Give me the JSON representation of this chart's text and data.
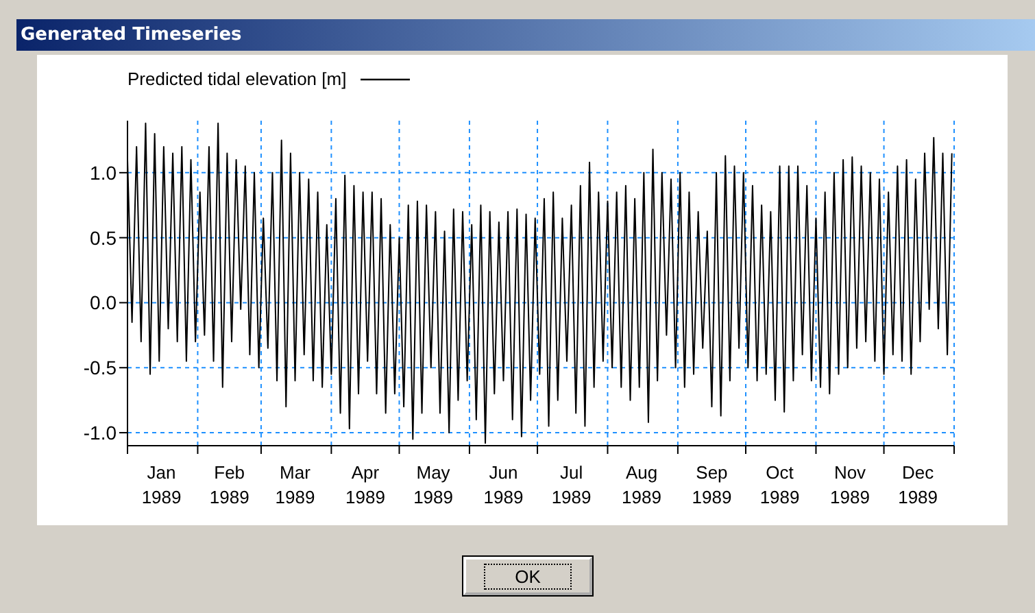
{
  "chart_data": {
    "type": "line",
    "title": "Generated Timeseries",
    "x": [
      "1989-01-01",
      "1989-01-03",
      "1989-01-05",
      "1989-01-07",
      "1989-01-09",
      "1989-01-11",
      "1989-01-13",
      "1989-01-15",
      "1989-01-17",
      "1989-01-19",
      "1989-01-21",
      "1989-01-23",
      "1989-01-25",
      "1989-01-27",
      "1989-01-29",
      "1989-01-31",
      "1989-02-02",
      "1989-02-04",
      "1989-02-06",
      "1989-02-08",
      "1989-02-10",
      "1989-02-12",
      "1989-02-14",
      "1989-02-16",
      "1989-02-18",
      "1989-02-20",
      "1989-02-22",
      "1989-02-24",
      "1989-02-26",
      "1989-02-28",
      "1989-03-02",
      "1989-03-04",
      "1989-03-06",
      "1989-03-08",
      "1989-03-10",
      "1989-03-12",
      "1989-03-14",
      "1989-03-16",
      "1989-03-18",
      "1989-03-20",
      "1989-03-22",
      "1989-03-24",
      "1989-03-26",
      "1989-03-28",
      "1989-03-30",
      "1989-04-01",
      "1989-04-03",
      "1989-04-05",
      "1989-04-07",
      "1989-04-09",
      "1989-04-11",
      "1989-04-13",
      "1989-04-15",
      "1989-04-17",
      "1989-04-19",
      "1989-04-21",
      "1989-04-23",
      "1989-04-25",
      "1989-04-27",
      "1989-04-29",
      "1989-05-01",
      "1989-05-03",
      "1989-05-05",
      "1989-05-07",
      "1989-05-09",
      "1989-05-11",
      "1989-05-13",
      "1989-05-15",
      "1989-05-17",
      "1989-05-19",
      "1989-05-21",
      "1989-05-23",
      "1989-05-25",
      "1989-05-27",
      "1989-05-29",
      "1989-05-31",
      "1989-06-02",
      "1989-06-04",
      "1989-06-06",
      "1989-06-08",
      "1989-06-10",
      "1989-06-12",
      "1989-06-14",
      "1989-06-16",
      "1989-06-18",
      "1989-06-20",
      "1989-06-22",
      "1989-06-24",
      "1989-06-26",
      "1989-06-28",
      "1989-06-30",
      "1989-07-02",
      "1989-07-04",
      "1989-07-06",
      "1989-07-08",
      "1989-07-10",
      "1989-07-12",
      "1989-07-14",
      "1989-07-16",
      "1989-07-18",
      "1989-07-20",
      "1989-07-22",
      "1989-07-24",
      "1989-07-26",
      "1989-07-28",
      "1989-07-30",
      "1989-08-01",
      "1989-08-03",
      "1989-08-05",
      "1989-08-07",
      "1989-08-09",
      "1989-08-11",
      "1989-08-13",
      "1989-08-15",
      "1989-08-17",
      "1989-08-19",
      "1989-08-21",
      "1989-08-23",
      "1989-08-25",
      "1989-08-27",
      "1989-08-29",
      "1989-08-31",
      "1989-09-02",
      "1989-09-04",
      "1989-09-06",
      "1989-09-08",
      "1989-09-10",
      "1989-09-12",
      "1989-09-14",
      "1989-09-16",
      "1989-09-18",
      "1989-09-20",
      "1989-09-22",
      "1989-09-24",
      "1989-09-26",
      "1989-09-28",
      "1989-09-30",
      "1989-10-02",
      "1989-10-04",
      "1989-10-06",
      "1989-10-08",
      "1989-10-10",
      "1989-10-12",
      "1989-10-14",
      "1989-10-16",
      "1989-10-18",
      "1989-10-20",
      "1989-10-22",
      "1989-10-24",
      "1989-10-26",
      "1989-10-28",
      "1989-10-30",
      "1989-11-01",
      "1989-11-03",
      "1989-11-05",
      "1989-11-07",
      "1989-11-09",
      "1989-11-11",
      "1989-11-13",
      "1989-11-15",
      "1989-11-17",
      "1989-11-19",
      "1989-11-21",
      "1989-11-23",
      "1989-11-25",
      "1989-11-27",
      "1989-11-29",
      "1989-12-01",
      "1989-12-03",
      "1989-12-05",
      "1989-12-07",
      "1989-12-09",
      "1989-12-11",
      "1989-12-13",
      "1989-12-15",
      "1989-12-17",
      "1989-12-19",
      "1989-12-21",
      "1989-12-23",
      "1989-12-25",
      "1989-12-27",
      "1989-12-29",
      "1989-12-31"
    ],
    "series": [
      {
        "name": "Predicted tidal elevation [m]",
        "color": "#000000",
        "values": [
          1.1,
          -0.15,
          1.2,
          -0.3,
          1.38,
          -0.55,
          1.3,
          -0.45,
          1.2,
          -0.2,
          1.15,
          -0.3,
          1.2,
          -0.45,
          1.1,
          -0.3,
          0.85,
          -0.25,
          1.2,
          -0.45,
          1.38,
          -0.65,
          1.15,
          -0.3,
          1.1,
          -0.05,
          1.05,
          -0.4,
          1.0,
          -0.5,
          0.65,
          -0.35,
          1.0,
          -0.6,
          1.25,
          -0.8,
          1.15,
          -0.6,
          1.0,
          -0.4,
          0.95,
          -0.6,
          0.85,
          -0.65,
          0.6,
          -0.55,
          0.8,
          -0.85,
          0.98,
          -0.97,
          0.9,
          -0.7,
          0.85,
          -0.45,
          0.85,
          -0.7,
          0.8,
          -0.85,
          0.6,
          -0.7,
          0.5,
          -0.8,
          0.75,
          -1.05,
          0.78,
          -0.85,
          0.75,
          -0.5,
          0.7,
          -0.85,
          0.55,
          -1.0,
          0.72,
          -0.75,
          0.7,
          -0.6,
          0.6,
          -0.9,
          0.75,
          -1.08,
          0.7,
          -0.7,
          0.62,
          -0.6,
          0.7,
          -0.9,
          0.72,
          -1.03,
          0.68,
          -0.75,
          0.65,
          -0.55,
          0.8,
          -0.95,
          0.85,
          -0.75,
          0.65,
          -0.45,
          0.75,
          -0.85,
          0.9,
          -0.95,
          1.08,
          -0.65,
          0.85,
          -0.45,
          0.78,
          -0.5,
          0.85,
          -0.65,
          0.9,
          -0.75,
          0.8,
          -0.65,
          1.0,
          -0.92,
          1.18,
          -0.6,
          1.0,
          -0.25,
          0.95,
          -0.5,
          1.0,
          -0.65,
          0.85,
          -0.55,
          0.7,
          -0.35,
          0.55,
          -0.8,
          1.0,
          -0.87,
          1.13,
          -0.6,
          1.05,
          -0.35,
          1.0,
          -0.5,
          0.9,
          -0.6,
          0.75,
          -0.55,
          0.7,
          -0.75,
          1.05,
          -0.84,
          1.05,
          -0.6,
          1.05,
          -0.4,
          0.9,
          -0.6,
          0.65,
          -0.65,
          0.85,
          -0.7,
          1.0,
          -0.55,
          1.1,
          -0.5,
          1.12,
          -0.35,
          1.05,
          -0.3,
          1.0,
          -0.45,
          0.95,
          -0.55,
          0.85,
          -0.4,
          1.05,
          -0.45,
          1.1,
          -0.55,
          0.95,
          -0.3,
          1.15,
          -0.05,
          1.27,
          -0.2,
          1.15,
          -0.4,
          1.15
        ]
      }
    ],
    "xlim": [
      "1989-01-01",
      "1990-01-01"
    ],
    "xticks": [
      {
        "value": "1989-01-01",
        "label": null
      },
      {
        "value": "1989-01-16",
        "label": "Jan 1989"
      },
      {
        "value": "1989-02-01",
        "label": null
      },
      {
        "value": "1989-02-15",
        "label": "Feb 1989"
      },
      {
        "value": "1989-03-01",
        "label": null
      },
      {
        "value": "1989-03-16",
        "label": "Mar 1989"
      },
      {
        "value": "1989-04-01",
        "label": null
      },
      {
        "value": "1989-04-16",
        "label": "Apr 1989"
      },
      {
        "value": "1989-05-01",
        "label": null
      },
      {
        "value": "1989-05-16",
        "label": "May 1989"
      },
      {
        "value": "1989-06-01",
        "label": null
      },
      {
        "value": "1989-06-16",
        "label": "Jun 1989"
      },
      {
        "value": "1989-07-01",
        "label": null
      },
      {
        "value": "1989-07-16",
        "label": "Jul 1989"
      },
      {
        "value": "1989-08-01",
        "label": null
      },
      {
        "value": "1989-08-16",
        "label": "Aug 1989"
      },
      {
        "value": "1989-09-01",
        "label": null
      },
      {
        "value": "1989-09-16",
        "label": "Sep 1989"
      },
      {
        "value": "1989-10-01",
        "label": null
      },
      {
        "value": "1989-10-16",
        "label": "Oct 1989"
      },
      {
        "value": "1989-11-01",
        "label": null
      },
      {
        "value": "1989-11-16",
        "label": "Nov 1989"
      },
      {
        "value": "1989-12-01",
        "label": null
      },
      {
        "value": "1989-12-16",
        "label": "Dec 1989"
      },
      {
        "value": "1990-01-01",
        "label": null
      }
    ],
    "ylim": [
      -1.1,
      1.4
    ],
    "yticks": [
      {
        "value": -1,
        "label": "-1.0"
      },
      {
        "value": -0.5,
        "label": "-0.5"
      },
      {
        "value": 0,
        "label": "0.0"
      },
      {
        "value": 0.5,
        "label": "0.5"
      },
      {
        "value": 1,
        "label": "1.0"
      }
    ],
    "grid": true,
    "legend": "top left",
    "marker": "none",
    "line_style": "solid",
    "annotations": [
      "OK"
    ]
  }
}
